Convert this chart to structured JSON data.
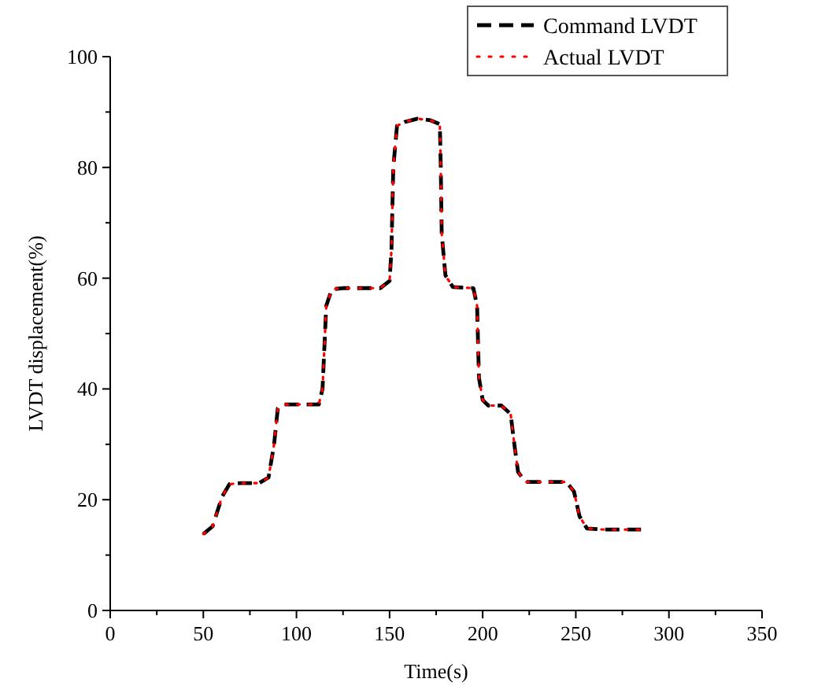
{
  "chart_data": {
    "type": "line",
    "xlabel": "Time(s)",
    "ylabel": "LVDT displacement(%)",
    "xlim": [
      0,
      350
    ],
    "ylim": [
      0,
      100
    ],
    "xticks": [
      0,
      {
        "value": 25,
        "label": null
      },
      50,
      {
        "value": 75,
        "label": null
      },
      100,
      {
        "value": 125,
        "label": null
      },
      150,
      {
        "value": 175,
        "label": null
      },
      200,
      {
        "value": 225,
        "label": null
      },
      250,
      {
        "value": 275,
        "label": null
      },
      300,
      {
        "value": 325,
        "label": null
      },
      350
    ],
    "yticks": [
      0,
      {
        "value": 10,
        "label": null
      },
      20,
      {
        "value": 30,
        "label": null
      },
      40,
      {
        "value": 50,
        "label": null
      },
      60,
      {
        "value": 70,
        "label": null
      },
      80,
      {
        "value": 90,
        "label": null
      },
      100
    ],
    "legend": "top right",
    "grid": false,
    "marker": "none",
    "x": [
      50,
      55,
      60,
      64,
      70,
      80,
      85,
      88,
      90,
      93,
      112,
      114,
      116,
      119,
      125,
      145,
      150,
      151,
      152,
      154,
      158,
      165,
      172,
      177,
      177.5,
      178,
      180,
      184,
      195,
      197,
      198,
      200,
      203,
      210,
      215,
      217,
      219,
      223,
      245,
      249,
      252,
      256,
      265,
      285
    ],
    "series": [
      {
        "name": "Command LVDT",
        "color": "#000000",
        "line_style": "dashed",
        "values": [
          13.8,
          15.2,
          20.5,
          22.8,
          23,
          23,
          24,
          30,
          36.5,
          37.2,
          37.2,
          40,
          55,
          58,
          58.2,
          58.2,
          59.5,
          65,
          80,
          87.5,
          88.2,
          88.8,
          88.5,
          87.8,
          80,
          68,
          60.5,
          58.4,
          58.2,
          55,
          42,
          38,
          37,
          37,
          35.5,
          30,
          25,
          23.2,
          23.2,
          21.5,
          17,
          14.8,
          14.6,
          14.6
        ]
      },
      {
        "name": "Actual LVDT",
        "color": "#ff0000",
        "line_style": "dotted",
        "values": [
          13.8,
          15.2,
          20.5,
          22.8,
          23,
          23,
          24,
          30,
          36.5,
          37.2,
          37.2,
          40,
          55,
          58,
          58.2,
          58.2,
          59.5,
          65,
          80,
          87.5,
          88.2,
          88.8,
          88.5,
          87.8,
          80,
          68,
          60.5,
          58.4,
          58.2,
          55,
          42,
          38,
          37,
          37,
          35.5,
          30,
          25,
          23.2,
          23.2,
          21.5,
          17,
          14.8,
          14.6,
          14.6
        ]
      }
    ]
  }
}
